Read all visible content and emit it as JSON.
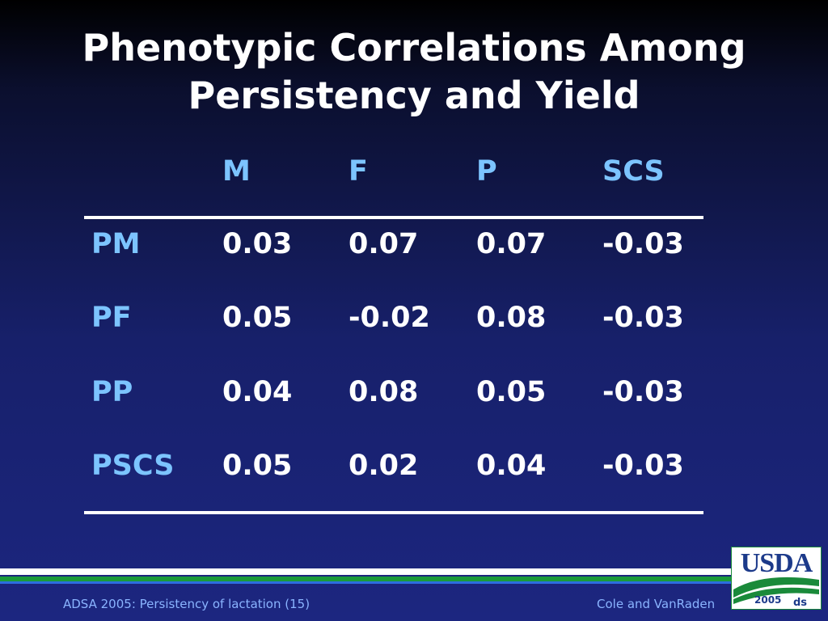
{
  "title": {
    "line1": "Phenotypic Correlations Among",
    "line2": "Persistency and Yield"
  },
  "table": {
    "headers": [
      "M",
      "F",
      "P",
      "SCS"
    ],
    "rows": [
      {
        "label": "PM",
        "values": [
          "0.03",
          "0.07",
          "0.07",
          "-0.03"
        ]
      },
      {
        "label": "PF",
        "values": [
          "0.05",
          "-0.02",
          "0.08",
          "-0.03"
        ]
      },
      {
        "label": "PP",
        "values": [
          "0.04",
          "0.08",
          "0.05",
          "-0.03"
        ]
      },
      {
        "label": "PSCS",
        "values": [
          "0.05",
          "0.02",
          "0.04",
          "-0.03"
        ]
      }
    ]
  },
  "footer": {
    "left": "ADSA 2005: Persistency of lactation (15)",
    "right": "Cole and VanRaden"
  },
  "logo": {
    "text": "USDA",
    "year": "2005"
  },
  "colors": {
    "header_text": "#7cc4ff",
    "value_text": "#ffffff",
    "footer_text": "#8ab4ff",
    "accent_green": "#1a9a3a"
  }
}
